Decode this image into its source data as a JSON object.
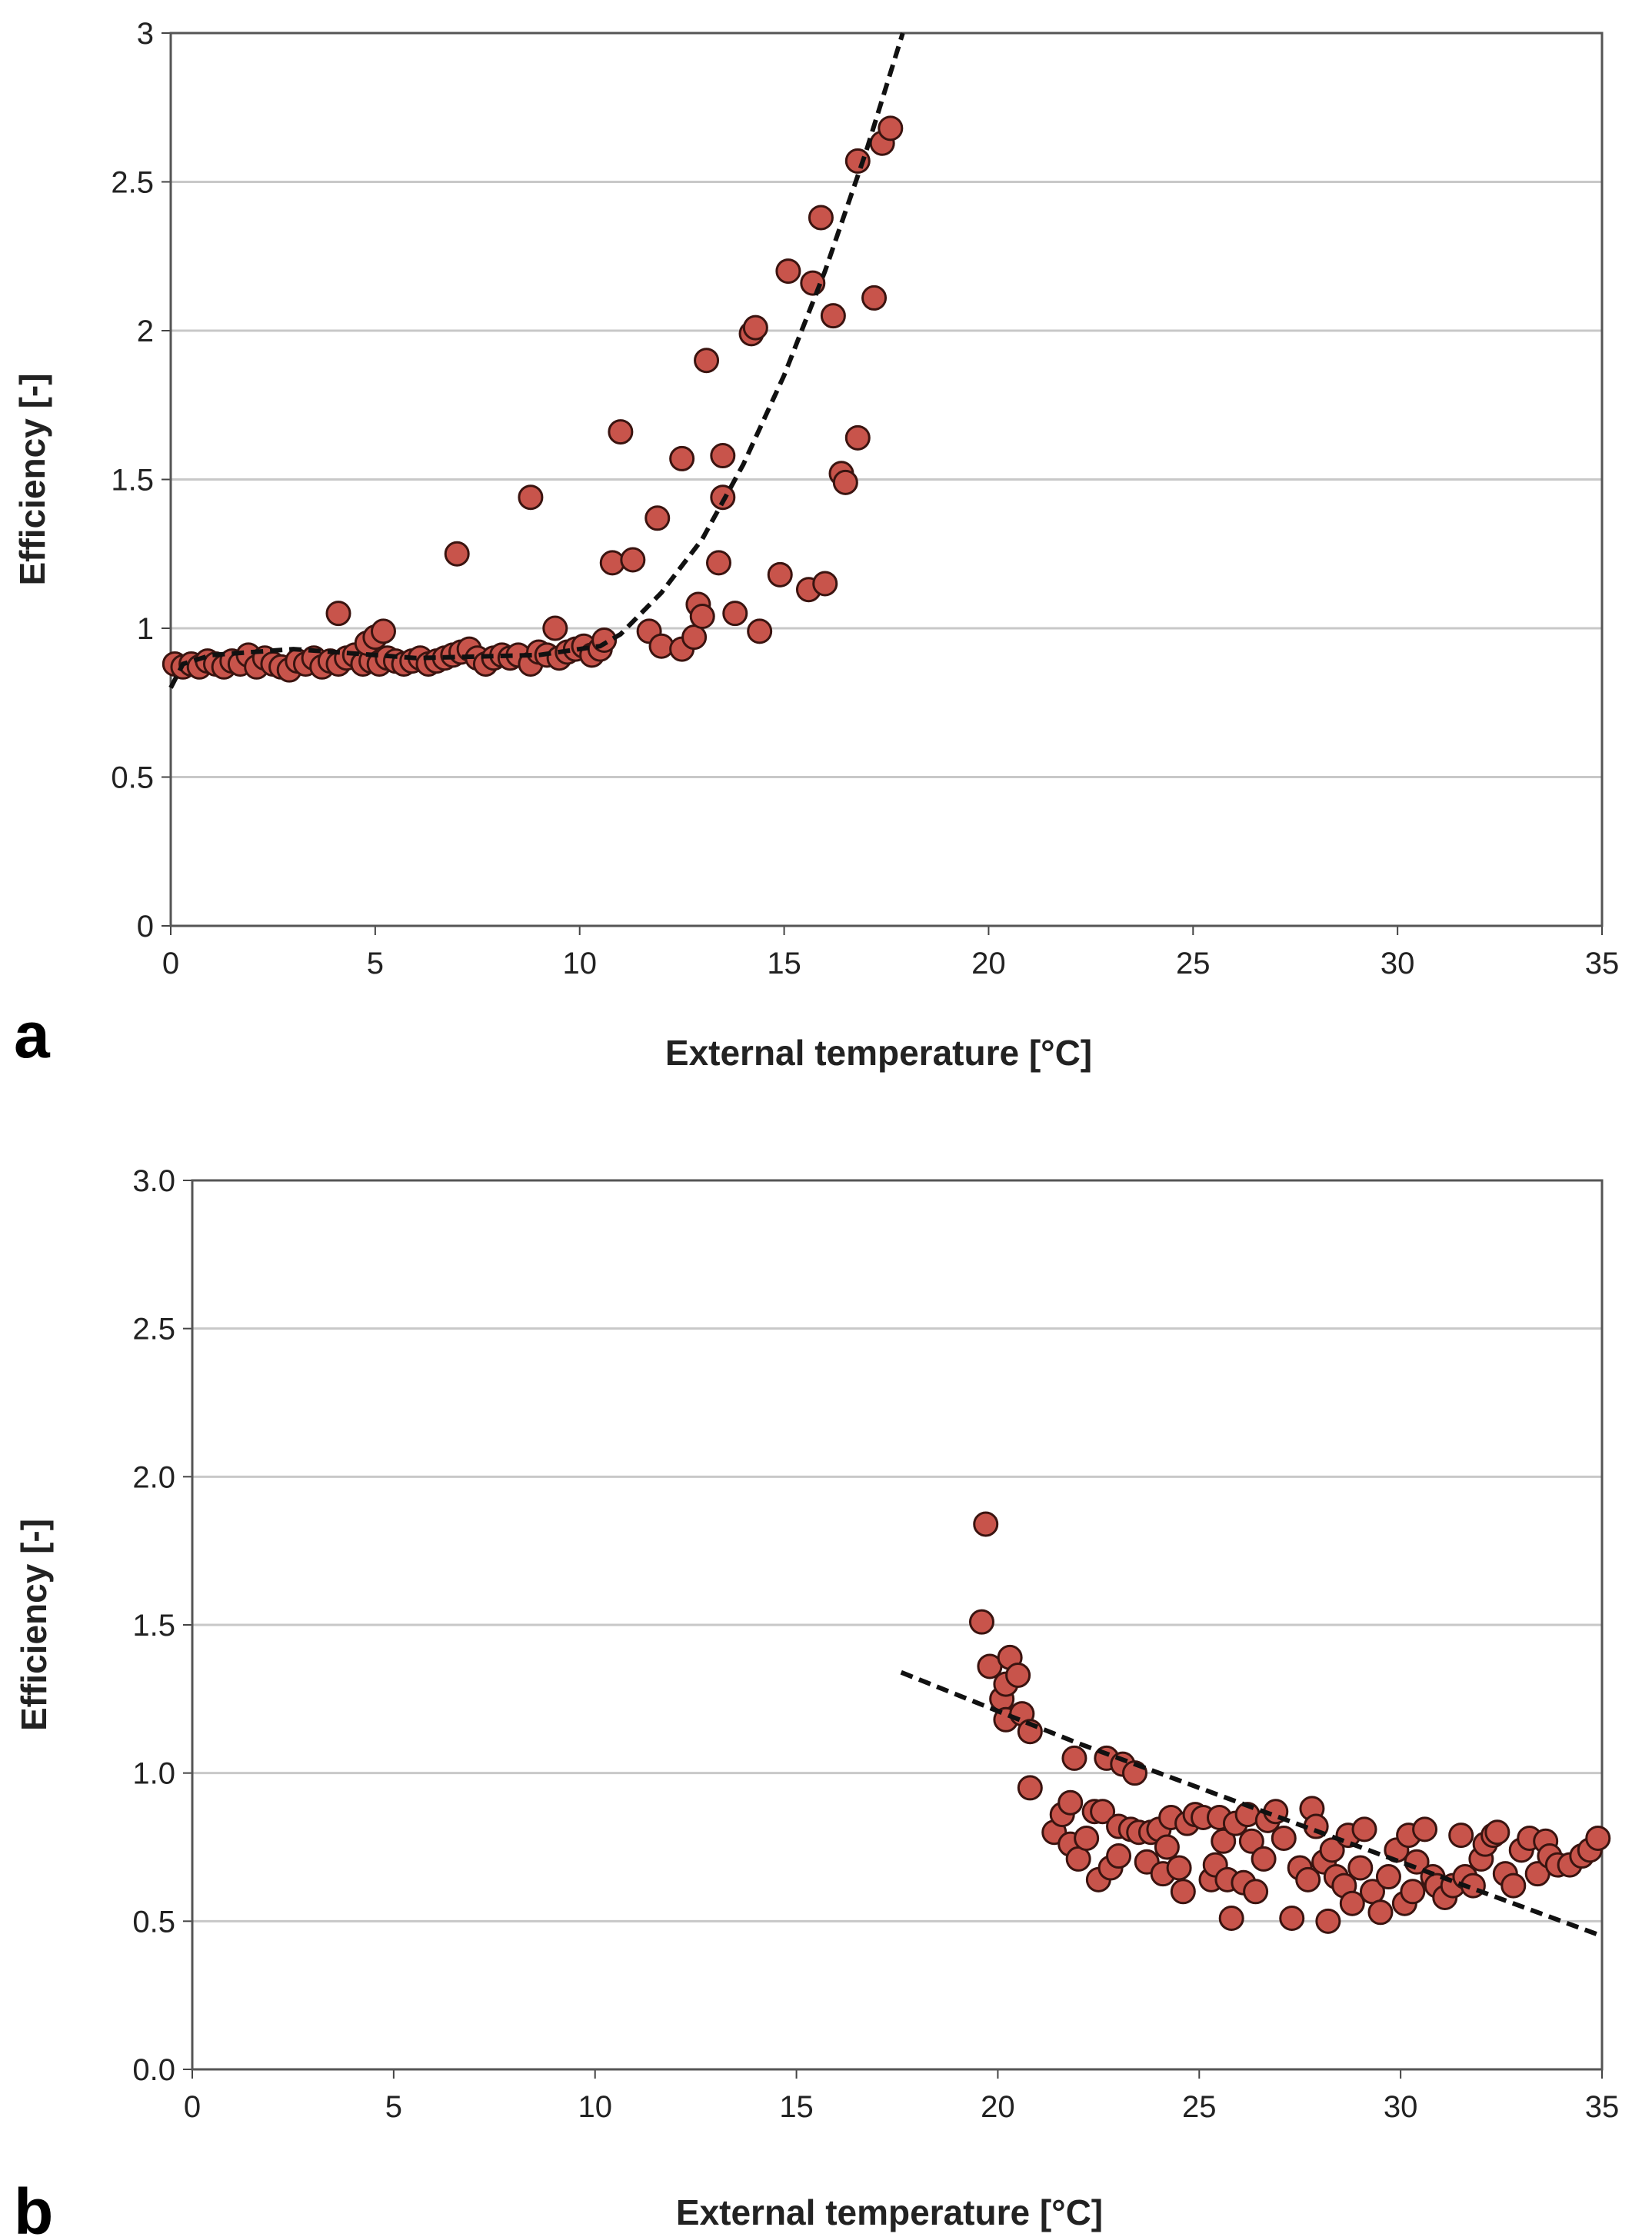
{
  "chart_data": [
    {
      "panel_label": "a",
      "type": "scatter",
      "xlabel": "External temperature [°C]",
      "ylabel": "Efficiency [-]",
      "xlim": [
        0,
        35
      ],
      "ylim": [
        0,
        3
      ],
      "xticks": [
        "0",
        "5",
        "10",
        "15",
        "20",
        "25",
        "30",
        "35"
      ],
      "yticks": [
        "0",
        "0.5",
        "1",
        "1.5",
        "2",
        "2.5",
        "3"
      ],
      "grid": "horizontal",
      "marker_color": "#c8544b",
      "points": [
        [
          0.1,
          0.88
        ],
        [
          0.3,
          0.87
        ],
        [
          0.5,
          0.88
        ],
        [
          0.7,
          0.87
        ],
        [
          0.9,
          0.89
        ],
        [
          1.1,
          0.88
        ],
        [
          1.3,
          0.87
        ],
        [
          1.5,
          0.89
        ],
        [
          1.7,
          0.88
        ],
        [
          1.9,
          0.91
        ],
        [
          2.1,
          0.87
        ],
        [
          2.3,
          0.9
        ],
        [
          2.5,
          0.88
        ],
        [
          2.7,
          0.87
        ],
        [
          2.9,
          0.86
        ],
        [
          3.1,
          0.89
        ],
        [
          3.3,
          0.88
        ],
        [
          3.5,
          0.9
        ],
        [
          3.7,
          0.87
        ],
        [
          3.9,
          0.89
        ],
        [
          4.1,
          0.88
        ],
        [
          4.3,
          0.9
        ],
        [
          4.5,
          0.91
        ],
        [
          4.7,
          0.88
        ],
        [
          4.9,
          0.89
        ],
        [
          5.1,
          0.88
        ],
        [
          5.3,
          0.9
        ],
        [
          5.5,
          0.89
        ],
        [
          5.7,
          0.88
        ],
        [
          5.9,
          0.89
        ],
        [
          6.1,
          0.9
        ],
        [
          6.3,
          0.88
        ],
        [
          6.5,
          0.89
        ],
        [
          6.7,
          0.9
        ],
        [
          6.9,
          0.91
        ],
        [
          7.1,
          0.92
        ],
        [
          7.3,
          0.93
        ],
        [
          7.5,
          0.9
        ],
        [
          7.7,
          0.88
        ],
        [
          7.9,
          0.9
        ],
        [
          8.1,
          0.91
        ],
        [
          8.3,
          0.9
        ],
        [
          8.5,
          0.91
        ],
        [
          8.8,
          0.88
        ],
        [
          9.0,
          0.92
        ],
        [
          9.2,
          0.91
        ],
        [
          9.5,
          0.9
        ],
        [
          9.7,
          0.92
        ],
        [
          9.9,
          0.93
        ],
        [
          10.1,
          0.94
        ],
        [
          10.3,
          0.91
        ],
        [
          10.5,
          0.93
        ],
        [
          10.6,
          0.96
        ],
        [
          4.1,
          1.05
        ],
        [
          4.8,
          0.95
        ],
        [
          5.0,
          0.97
        ],
        [
          5.2,
          0.99
        ],
        [
          7.0,
          1.25
        ],
        [
          8.8,
          1.44
        ],
        [
          9.4,
          1.0
        ],
        [
          10.8,
          1.22
        ],
        [
          11.0,
          1.66
        ],
        [
          11.3,
          1.23
        ],
        [
          11.7,
          0.99
        ],
        [
          11.9,
          1.37
        ],
        [
          12.0,
          0.94
        ],
        [
          12.5,
          1.57
        ],
        [
          12.5,
          0.93
        ],
        [
          12.8,
          0.97
        ],
        [
          12.9,
          1.08
        ],
        [
          13.0,
          1.04
        ],
        [
          13.1,
          1.9
        ],
        [
          13.4,
          1.22
        ],
        [
          13.5,
          1.58
        ],
        [
          13.5,
          1.44
        ],
        [
          13.8,
          1.05
        ],
        [
          14.2,
          1.99
        ],
        [
          14.3,
          2.01
        ],
        [
          14.4,
          0.99
        ],
        [
          14.9,
          1.18
        ],
        [
          15.1,
          2.2
        ],
        [
          15.6,
          1.13
        ],
        [
          15.7,
          2.16
        ],
        [
          15.9,
          2.38
        ],
        [
          16.0,
          1.15
        ],
        [
          16.2,
          2.05
        ],
        [
          16.4,
          1.52
        ],
        [
          16.5,
          1.49
        ],
        [
          16.8,
          2.57
        ],
        [
          16.8,
          1.64
        ],
        [
          17.2,
          2.11
        ],
        [
          17.4,
          2.63
        ],
        [
          17.6,
          2.68
        ]
      ],
      "trendline": [
        [
          0,
          0.8
        ],
        [
          0.3,
          0.88
        ],
        [
          1,
          0.91
        ],
        [
          3,
          0.93
        ],
        [
          6,
          0.9
        ],
        [
          9,
          0.91
        ],
        [
          10.5,
          0.94
        ],
        [
          11,
          0.98
        ],
        [
          12,
          1.12
        ],
        [
          13,
          1.3
        ],
        [
          14,
          1.55
        ],
        [
          15,
          1.85
        ],
        [
          16,
          2.2
        ],
        [
          17,
          2.6
        ],
        [
          17.9,
          3.0
        ]
      ]
    },
    {
      "panel_label": "b",
      "type": "scatter",
      "xlabel": "External temperature [°C]",
      "ylabel": "Efficiency [-]",
      "xlim": [
        0,
        35
      ],
      "ylim": [
        0,
        3
      ],
      "xticks": [
        "0",
        "5",
        "10",
        "15",
        "20",
        "25",
        "30",
        "35"
      ],
      "yticks": [
        "0.0",
        "0.5",
        "1.0",
        "1.5",
        "2.0",
        "2.5",
        "3.0"
      ],
      "grid": "horizontal",
      "marker_color": "#c8544b",
      "points": [
        [
          19.7,
          1.84
        ],
        [
          19.6,
          1.51
        ],
        [
          19.8,
          1.36
        ],
        [
          20.1,
          1.25
        ],
        [
          20.2,
          1.3
        ],
        [
          20.2,
          1.18
        ],
        [
          20.3,
          1.39
        ],
        [
          20.5,
          1.33
        ],
        [
          20.6,
          1.2
        ],
        [
          20.8,
          1.14
        ],
        [
          20.8,
          0.95
        ],
        [
          21.4,
          0.8
        ],
        [
          21.6,
          0.86
        ],
        [
          21.8,
          0.9
        ],
        [
          21.8,
          0.76
        ],
        [
          21.9,
          1.05
        ],
        [
          22.0,
          0.71
        ],
        [
          22.2,
          0.78
        ],
        [
          22.4,
          0.87
        ],
        [
          22.5,
          0.64
        ],
        [
          22.6,
          0.87
        ],
        [
          22.7,
          1.05
        ],
        [
          22.8,
          0.68
        ],
        [
          23.0,
          0.72
        ],
        [
          23.0,
          0.82
        ],
        [
          23.1,
          1.03
        ],
        [
          23.3,
          0.81
        ],
        [
          23.4,
          1.0
        ],
        [
          23.5,
          0.8
        ],
        [
          23.7,
          0.7
        ],
        [
          23.8,
          0.8
        ],
        [
          24.0,
          0.81
        ],
        [
          24.1,
          0.66
        ],
        [
          24.2,
          0.75
        ],
        [
          24.3,
          0.85
        ],
        [
          24.5,
          0.68
        ],
        [
          24.6,
          0.6
        ],
        [
          24.7,
          0.83
        ],
        [
          24.9,
          0.86
        ],
        [
          25.1,
          0.85
        ],
        [
          25.3,
          0.64
        ],
        [
          25.4,
          0.69
        ],
        [
          25.5,
          0.85
        ],
        [
          25.6,
          0.77
        ],
        [
          25.7,
          0.64
        ],
        [
          25.8,
          0.51
        ],
        [
          25.9,
          0.83
        ],
        [
          26.1,
          0.63
        ],
        [
          26.2,
          0.86
        ],
        [
          26.3,
          0.77
        ],
        [
          26.4,
          0.6
        ],
        [
          26.6,
          0.71
        ],
        [
          26.7,
          0.84
        ],
        [
          26.9,
          0.87
        ],
        [
          27.1,
          0.78
        ],
        [
          27.3,
          0.51
        ],
        [
          27.5,
          0.68
        ],
        [
          27.7,
          0.64
        ],
        [
          27.8,
          0.88
        ],
        [
          27.9,
          0.82
        ],
        [
          28.1,
          0.7
        ],
        [
          28.2,
          0.5
        ],
        [
          28.3,
          0.74
        ],
        [
          28.4,
          0.65
        ],
        [
          28.6,
          0.62
        ],
        [
          28.7,
          0.79
        ],
        [
          28.8,
          0.56
        ],
        [
          29.0,
          0.68
        ],
        [
          29.1,
          0.81
        ],
        [
          29.3,
          0.6
        ],
        [
          29.5,
          0.53
        ],
        [
          29.7,
          0.65
        ],
        [
          29.9,
          0.74
        ],
        [
          30.1,
          0.56
        ],
        [
          30.2,
          0.79
        ],
        [
          30.3,
          0.6
        ],
        [
          30.4,
          0.7
        ],
        [
          30.6,
          0.81
        ],
        [
          30.8,
          0.65
        ],
        [
          30.9,
          0.62
        ],
        [
          31.1,
          0.58
        ],
        [
          31.3,
          0.62
        ],
        [
          31.5,
          0.79
        ],
        [
          31.6,
          0.65
        ],
        [
          31.8,
          0.62
        ],
        [
          32.0,
          0.71
        ],
        [
          32.1,
          0.76
        ],
        [
          32.3,
          0.79
        ],
        [
          32.4,
          0.8
        ],
        [
          32.6,
          0.66
        ],
        [
          32.8,
          0.62
        ],
        [
          33.0,
          0.74
        ],
        [
          33.2,
          0.78
        ],
        [
          33.4,
          0.66
        ],
        [
          33.6,
          0.77
        ],
        [
          33.7,
          0.72
        ],
        [
          33.9,
          0.69
        ],
        [
          34.2,
          0.69
        ],
        [
          34.5,
          0.72
        ],
        [
          34.7,
          0.74
        ],
        [
          34.9,
          0.78
        ]
      ],
      "trendline": [
        [
          17.6,
          1.34
        ],
        [
          22,
          1.1
        ],
        [
          26,
          0.9
        ],
        [
          30,
          0.7
        ],
        [
          35,
          0.45
        ]
      ]
    }
  ]
}
